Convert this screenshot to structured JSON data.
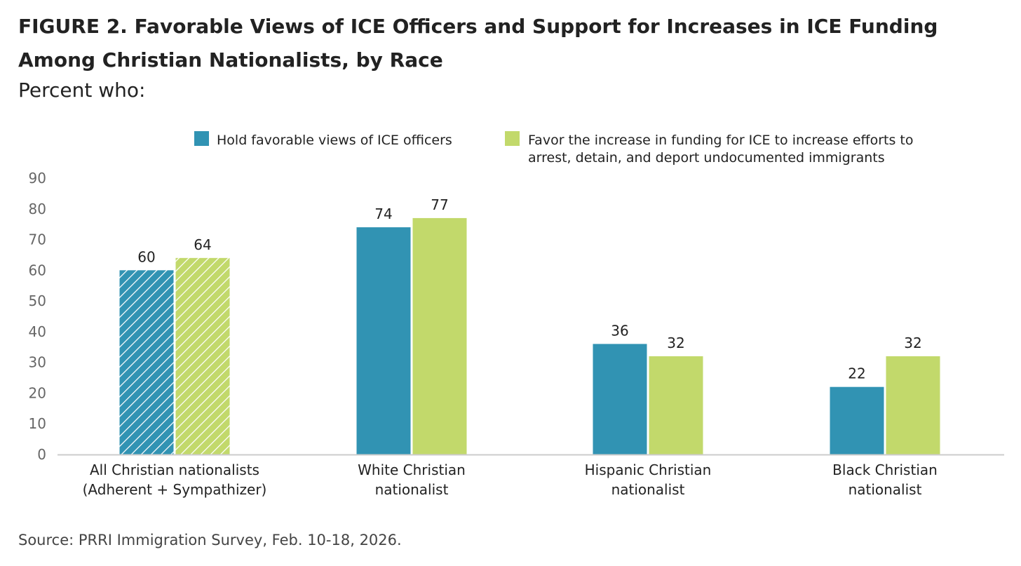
{
  "chart_data": {
    "type": "bar",
    "title": "FIGURE 2.  Favorable Views of ICE Officers and Support for Increases in ICE Funding Among Christian Nationalists, by Race",
    "subtitle": "Percent who:",
    "source": "Source: PRRI Immigration Survey, Feb. 10-18, 2026.",
    "categories": [
      [
        "All Christian nationalists",
        "(Adherent + Sympathizer)"
      ],
      [
        "White Christian",
        "nationalist"
      ],
      [
        "Hispanic Christian",
        "nationalist"
      ],
      [
        "Black Christian",
        "nationalist"
      ]
    ],
    "series": [
      {
        "name": [
          "Hold favorable views of ICE officers"
        ],
        "color": "#3193b3",
        "values": [
          60,
          74,
          36,
          22
        ]
      },
      {
        "name": [
          "Favor the increase in funding for ICE to increase efforts to",
          "arrest, detain, and deport undocumented immigrants"
        ],
        "color": "#c2d96b",
        "values": [
          64,
          77,
          32,
          32
        ]
      }
    ],
    "hatched_categories": [
      0
    ],
    "ylim": [
      0,
      90
    ],
    "yticks": [
      0,
      10,
      20,
      30,
      40,
      50,
      60,
      70,
      80,
      90
    ],
    "legend_position": "top",
    "grid": false
  }
}
